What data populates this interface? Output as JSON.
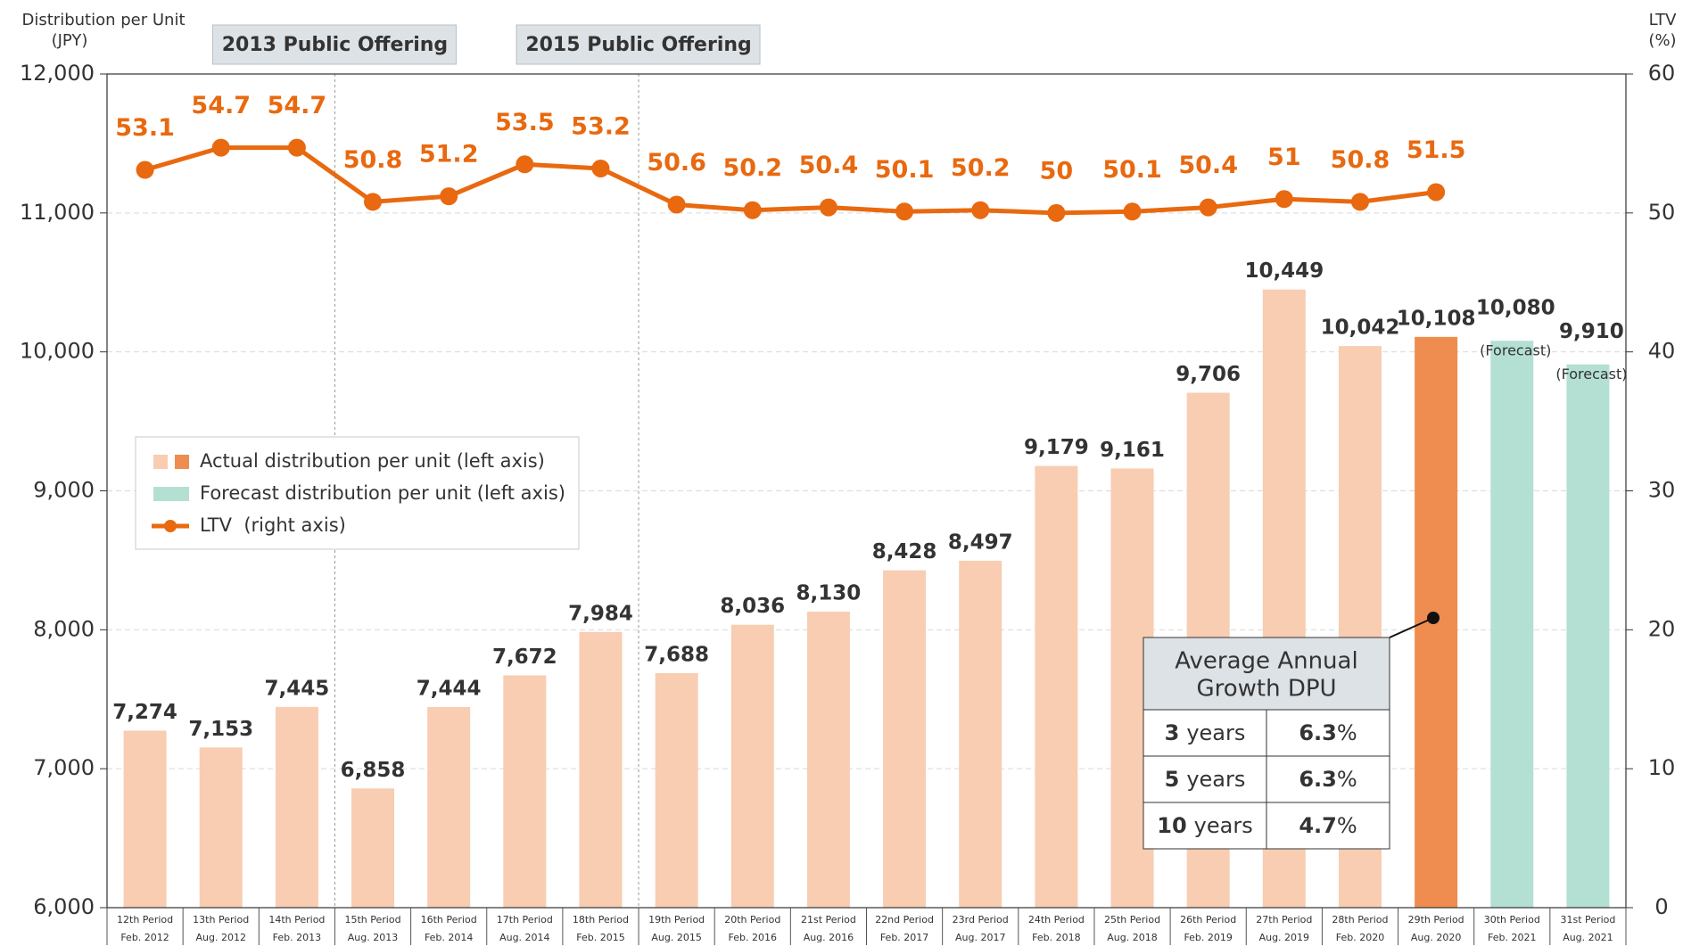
{
  "chart_data": {
    "type": "bar",
    "y_axis_title": [
      "Distribution per Unit",
      "(JPY)"
    ],
    "y2_axis_title": [
      "LTV",
      "(%)"
    ],
    "categories": [
      [
        "12th Period",
        "Feb. 2012"
      ],
      [
        "13th Period",
        "Aug. 2012"
      ],
      [
        "14th Period",
        "Feb. 2013"
      ],
      [
        "15th Period",
        "Aug. 2013"
      ],
      [
        "16th Period",
        "Feb. 2014"
      ],
      [
        "17th Period",
        "Aug. 2014"
      ],
      [
        "18th Period",
        "Feb. 2015"
      ],
      [
        "19th Period",
        "Aug. 2015"
      ],
      [
        "20th Period",
        "Feb. 2016"
      ],
      [
        "21st Period",
        "Aug. 2016"
      ],
      [
        "22nd Period",
        "Feb. 2017"
      ],
      [
        "23rd Period",
        "Aug. 2017"
      ],
      [
        "24th Period",
        "Feb. 2018"
      ],
      [
        "25th Period",
        "Aug. 2018"
      ],
      [
        "26th Period",
        "Feb. 2019"
      ],
      [
        "27th Period",
        "Aug. 2019"
      ],
      [
        "28th Period",
        "Feb. 2020"
      ],
      [
        "29th Period",
        "Aug. 2020"
      ],
      [
        "30th Period",
        "Feb. 2021"
      ],
      [
        "31st Period",
        "Aug. 2021"
      ]
    ],
    "ylim": [
      6000,
      12000
    ],
    "yticks": [
      {
        "value": 6000,
        "label": "6,000"
      },
      {
        "value": 7000,
        "label": "7,000"
      },
      {
        "value": 8000,
        "label": "8,000"
      },
      {
        "value": 9000,
        "label": "9,000"
      },
      {
        "value": 10000,
        "label": "10,000"
      },
      {
        "value": 11000,
        "label": "11,000"
      },
      {
        "value": 12000,
        "label": "12,000"
      }
    ],
    "y2lim": [
      0,
      60
    ],
    "y2ticks": [
      0,
      10,
      20,
      30,
      40,
      50,
      60
    ],
    "grid": true,
    "series": [
      {
        "name": "Actual distribution per unit (left axis)",
        "type": "bar",
        "colors": [
          "#f8cdb2",
          "#f8cdb2",
          "#f8cdb2",
          "#f8cdb2",
          "#f8cdb2",
          "#f8cdb2",
          "#f8cdb2",
          "#f8cdb2",
          "#f8cdb2",
          "#f8cdb2",
          "#f8cdb2",
          "#f8cdb2",
          "#f8cdb2",
          "#f8cdb2",
          "#f8cdb2",
          "#f8cdb2",
          "#f8cdb2",
          "#ee8d4f",
          null,
          null
        ],
        "values": [
          7274,
          7153,
          7445,
          6858,
          7444,
          7672,
          7984,
          7688,
          8036,
          8130,
          8428,
          8497,
          9179,
          9161,
          9706,
          10449,
          10042,
          10108,
          null,
          null
        ],
        "value_labels": [
          "7,274",
          "7,153",
          "7,445",
          "6,858",
          "7,444",
          "7,672",
          "7,984",
          "7,688",
          "8,036",
          "8,130",
          "8,428",
          "8,497",
          "9,179",
          "9,161",
          "9,706",
          "10,449",
          "10,042",
          "10,108",
          null,
          null
        ]
      },
      {
        "name": "Forecast distribution per unit (left axis)",
        "type": "bar",
        "color": "#b3e0d3",
        "values": [
          null,
          null,
          null,
          null,
          null,
          null,
          null,
          null,
          null,
          null,
          null,
          null,
          null,
          null,
          null,
          null,
          null,
          null,
          10080,
          9910
        ],
        "value_labels": [
          null,
          null,
          null,
          null,
          null,
          null,
          null,
          null,
          null,
          null,
          null,
          null,
          null,
          null,
          null,
          null,
          null,
          null,
          "10,080",
          "9,910"
        ],
        "notes": [
          null,
          null,
          null,
          null,
          null,
          null,
          null,
          null,
          null,
          null,
          null,
          null,
          null,
          null,
          null,
          null,
          null,
          null,
          "(Forecast)",
          "(Forecast)"
        ]
      },
      {
        "name": "LTV  (right axis)",
        "type": "line",
        "axis": "y2",
        "color": "#e8690f",
        "values": [
          53.1,
          54.7,
          54.7,
          50.8,
          51.2,
          53.5,
          53.2,
          50.6,
          50.2,
          50.4,
          50.1,
          50.2,
          50.0,
          50.1,
          50.4,
          51.0,
          50.8,
          51.5,
          null,
          null
        ]
      }
    ],
    "events": [
      {
        "label": "2013 Public Offering",
        "before": "15th Period"
      },
      {
        "label": "2015 Public Offering",
        "before": "19th Period"
      }
    ],
    "growth_table": {
      "title": [
        "Average Annual",
        "Growth DPU"
      ],
      "rows": [
        [
          "3",
          "years",
          "6.3",
          "%"
        ],
        [
          "5",
          "years",
          "6.3",
          "%"
        ],
        [
          "10",
          "years",
          "4.7",
          "%"
        ]
      ]
    }
  }
}
